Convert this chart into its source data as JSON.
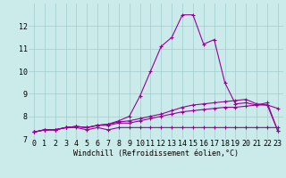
{
  "xlabel": "Windchill (Refroidissement éolien,°C)",
  "ylabel": "",
  "bg_color": "#cbeaea",
  "grid_color": "#9fcece",
  "line_color": "#990099",
  "x_values": [
    0,
    1,
    2,
    3,
    4,
    5,
    6,
    7,
    8,
    9,
    10,
    11,
    12,
    13,
    14,
    15,
    16,
    17,
    18,
    19,
    20,
    21,
    22,
    23
  ],
  "series": [
    [
      7.3,
      7.4,
      7.4,
      7.5,
      7.5,
      7.4,
      7.5,
      7.4,
      7.5,
      7.5,
      7.5,
      7.5,
      7.5,
      7.5,
      7.5,
      7.5,
      7.5,
      7.5,
      7.5,
      7.5,
      7.5,
      7.5,
      7.5,
      7.5
    ],
    [
      7.3,
      7.4,
      7.4,
      7.5,
      7.55,
      7.5,
      7.6,
      7.6,
      7.7,
      7.7,
      7.8,
      7.9,
      8.0,
      8.1,
      8.2,
      8.25,
      8.3,
      8.35,
      8.4,
      8.4,
      8.45,
      8.5,
      8.5,
      8.35
    ],
    [
      7.3,
      7.4,
      7.4,
      7.5,
      7.55,
      7.5,
      7.6,
      7.65,
      7.75,
      7.8,
      7.9,
      8.0,
      8.1,
      8.25,
      8.4,
      8.5,
      8.55,
      8.6,
      8.65,
      8.7,
      8.75,
      8.55,
      8.5,
      7.35
    ],
    [
      7.3,
      7.4,
      7.4,
      7.5,
      7.55,
      7.5,
      7.6,
      7.65,
      7.8,
      8.0,
      8.9,
      10.0,
      11.1,
      11.5,
      12.5,
      12.5,
      11.2,
      11.4,
      9.5,
      8.55,
      8.6,
      8.5,
      8.6,
      7.35
    ]
  ],
  "ylim": [
    7.0,
    13.0
  ],
  "xlim_min": -0.5,
  "xlim_max": 23.5,
  "yticks": [
    7,
    8,
    9,
    10,
    11,
    12
  ],
  "xtick_labels": [
    "0",
    "1",
    "2",
    "3",
    "4",
    "5",
    "6",
    "7",
    "8",
    "9",
    "10",
    "11",
    "12",
    "13",
    "14",
    "15",
    "16",
    "17",
    "18",
    "19",
    "20",
    "21",
    "22",
    "23"
  ],
  "marker": "+",
  "markersize": 3.5,
  "markeredgewidth": 0.8,
  "linewidth": 0.8,
  "xlabel_fontsize": 6.0,
  "tick_fontsize": 6.0
}
